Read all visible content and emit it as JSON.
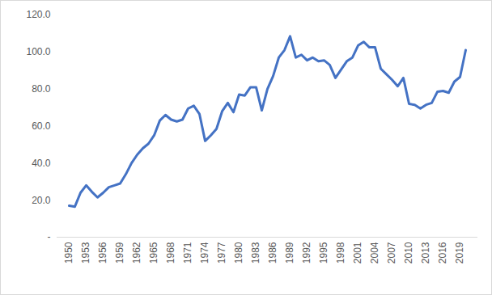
{
  "chart_data": {
    "type": "line",
    "categories": [
      "1950",
      null,
      null,
      "1953",
      null,
      null,
      "1956",
      null,
      null,
      "1959",
      null,
      null,
      "1962",
      null,
      null,
      "1965",
      null,
      null,
      "1968",
      null,
      null,
      "1971",
      null,
      null,
      "1974",
      null,
      null,
      "1977",
      null,
      null,
      "1980",
      null,
      null,
      "1983",
      null,
      null,
      "1986",
      null,
      null,
      "1989",
      null,
      null,
      "1992",
      null,
      null,
      "1995",
      null,
      null,
      "1998",
      null,
      null,
      "2001",
      null,
      null,
      "2004",
      null,
      null,
      "2007",
      null,
      null,
      "2010",
      null,
      null,
      "2013",
      null,
      null,
      "2016",
      null,
      null,
      "2019",
      null
    ],
    "values": [
      17,
      16.5,
      24,
      28,
      24.5,
      21.5,
      24,
      27,
      28,
      29,
      34,
      40,
      44.5,
      48,
      50.5,
      55,
      63,
      66,
      63.5,
      62.5,
      63.5,
      69.5,
      71,
      66.5,
      52,
      55,
      58.5,
      68,
      72.5,
      67.5,
      77,
      76.5,
      81,
      81,
      68.5,
      80,
      87,
      97,
      101,
      108.5,
      97,
      98.5,
      95.5,
      97,
      95,
      95.5,
      93,
      86,
      90.5,
      95,
      97,
      103.5,
      105.5,
      102.5,
      102.5,
      91,
      88,
      85,
      81.5,
      86,
      72,
      71.5,
      69.5,
      71.5,
      72.5,
      78.5,
      79,
      78,
      84,
      86.5,
      101
    ],
    "color": "#4472c4",
    "ylim": [
      0,
      120
    ],
    "yticks": [
      {
        "value": 0,
        "label": "-"
      },
      {
        "value": 20,
        "label": "20.0"
      },
      {
        "value": 40,
        "label": "40.0"
      },
      {
        "value": 60,
        "label": "60.0"
      },
      {
        "value": 80,
        "label": "80.0"
      },
      {
        "value": 100,
        "label": "100.0"
      },
      {
        "value": 120,
        "label": "120.0"
      }
    ],
    "grid": false
  }
}
